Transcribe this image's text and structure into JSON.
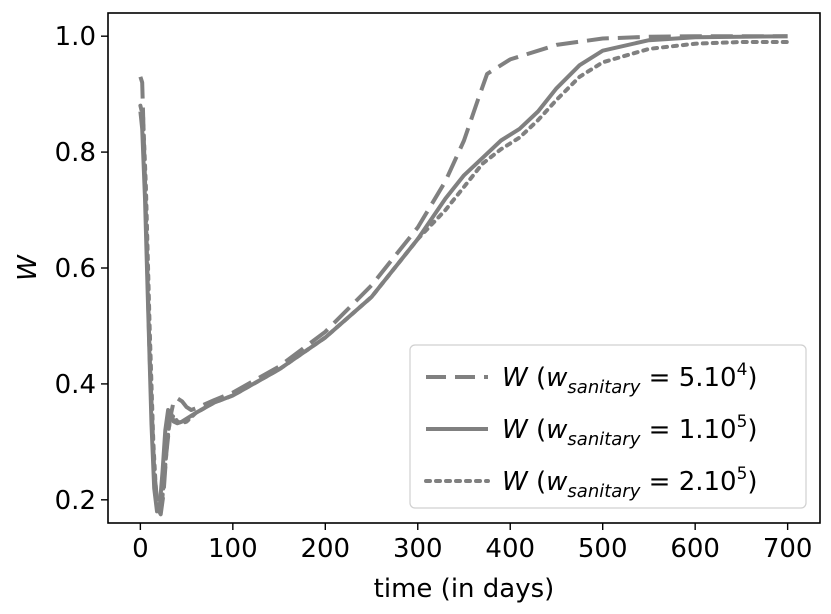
{
  "chart_data": {
    "type": "line",
    "title": "",
    "xlabel": "time (in days)",
    "ylabel": "W",
    "xlim": [
      -35,
      735
    ],
    "ylim": [
      0.16,
      1.04
    ],
    "xticks": [
      0,
      100,
      200,
      300,
      400,
      500,
      600,
      700
    ],
    "yticks": [
      0.2,
      0.4,
      0.6,
      0.8,
      1.0
    ],
    "xtick_labels": [
      "0",
      "100",
      "200",
      "300",
      "400",
      "500",
      "600",
      "700"
    ],
    "ytick_labels": [
      "0.2",
      "0.4",
      "0.6",
      "0.8",
      "1.0"
    ],
    "grid": false,
    "legend_position": "bottom-right",
    "line_color": "#808080",
    "series": [
      {
        "name": "W (w_sanitary = 5.10^4)",
        "legend": {
          "prefix": "W (",
          "var": "w",
          "sub": "sanitary",
          "eq": " = 5.10",
          "sup": "4",
          "close": ")"
        },
        "style": "dashed",
        "x": [
          0,
          2,
          5,
          10,
          15,
          19,
          22,
          25,
          28,
          32,
          36,
          40,
          45,
          50,
          55,
          60,
          80,
          100,
          150,
          200,
          250,
          300,
          330,
          350,
          365,
          375,
          400,
          450,
          500,
          550,
          600,
          650,
          700
        ],
        "y": [
          0.93,
          0.92,
          0.75,
          0.45,
          0.25,
          0.185,
          0.175,
          0.21,
          0.28,
          0.34,
          0.37,
          0.375,
          0.37,
          0.36,
          0.355,
          0.358,
          0.372,
          0.385,
          0.43,
          0.49,
          0.57,
          0.67,
          0.75,
          0.82,
          0.89,
          0.935,
          0.96,
          0.985,
          0.996,
          0.999,
          1.0,
          1.0,
          1.0
        ]
      },
      {
        "name": "W (w_sanitary = 1.10^5)",
        "legend": {
          "prefix": "W (",
          "var": "w",
          "sub": "sanitary",
          "eq": " = 1.10",
          "sup": "5",
          "close": ")"
        },
        "style": "solid",
        "x": [
          0,
          2,
          5,
          8,
          12,
          15,
          18,
          21,
          24,
          27,
          30,
          33,
          36,
          40,
          45,
          50,
          60,
          80,
          100,
          150,
          200,
          250,
          300,
          330,
          350,
          370,
          390,
          410,
          430,
          450,
          475,
          500,
          550,
          600,
          650,
          700
        ],
        "y": [
          0.87,
          0.84,
          0.72,
          0.55,
          0.33,
          0.22,
          0.18,
          0.19,
          0.25,
          0.32,
          0.355,
          0.35,
          0.335,
          0.332,
          0.335,
          0.34,
          0.35,
          0.368,
          0.38,
          0.425,
          0.48,
          0.55,
          0.65,
          0.72,
          0.76,
          0.79,
          0.82,
          0.84,
          0.87,
          0.91,
          0.95,
          0.975,
          0.993,
          0.998,
          0.999,
          1.0
        ]
      },
      {
        "name": "W (w_sanitary = 2.10^5)",
        "legend": {
          "prefix": "W (",
          "var": "w",
          "sub": "sanitary",
          "eq": " = 2.10",
          "sup": "5",
          "close": ")"
        },
        "style": "dotted",
        "x": [
          0,
          3,
          6,
          10,
          14,
          17,
          20,
          23,
          26,
          29,
          32,
          36,
          40,
          45,
          50,
          60,
          80,
          100,
          150,
          200,
          250,
          300,
          330,
          350,
          370,
          390,
          410,
          430,
          450,
          475,
          500,
          550,
          600,
          650,
          700
        ],
        "y": [
          0.88,
          0.86,
          0.74,
          0.5,
          0.3,
          0.21,
          0.18,
          0.19,
          0.24,
          0.3,
          0.34,
          0.345,
          0.335,
          0.332,
          0.335,
          0.35,
          0.368,
          0.38,
          0.425,
          0.48,
          0.55,
          0.65,
          0.7,
          0.74,
          0.78,
          0.805,
          0.825,
          0.855,
          0.89,
          0.93,
          0.955,
          0.978,
          0.987,
          0.99,
          0.99
        ]
      }
    ]
  }
}
